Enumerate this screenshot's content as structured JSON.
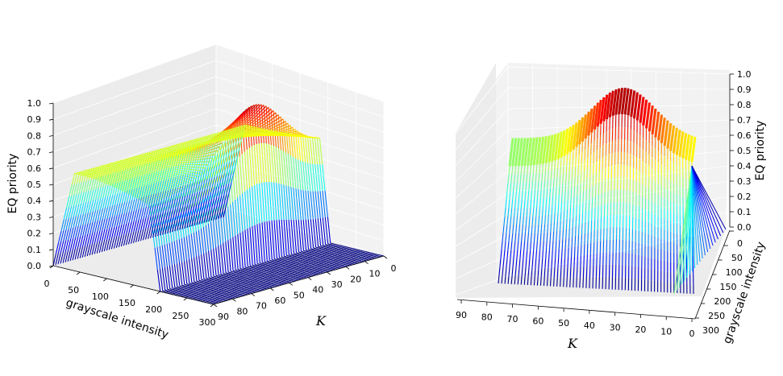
{
  "chart_data": [
    {
      "type": "surface",
      "view": "left",
      "xlabel": "grayscale intensity",
      "ylabel": "K",
      "zlabel": "EQ priority",
      "xlim": [
        0,
        300
      ],
      "ylim": [
        0,
        90
      ],
      "zlim": [
        0.0,
        1.0
      ],
      "x_ticks": [
        "0",
        "50",
        "100",
        "150",
        "200",
        "250",
        "300"
      ],
      "y_ticks": [
        "0",
        "10",
        "20",
        "30",
        "40",
        "50",
        "60",
        "70",
        "80",
        "90"
      ],
      "z_ticks": [
        "0.0",
        "0.1",
        "0.2",
        "0.3",
        "0.4",
        "0.5",
        "0.6",
        "0.7",
        "0.8",
        "0.9",
        "1.0"
      ],
      "colormap": "jet",
      "profile_x": [
        0,
        40,
        60,
        180,
        200,
        300
      ],
      "profile_z_low_k": [
        0.0,
        0.6,
        0.6,
        0.6,
        0.0,
        0.0
      ],
      "profile_z_peak": [
        0.0,
        0.6,
        0.6,
        0.98,
        0.0,
        0.0
      ],
      "k_peak": 35,
      "edge_z_k0": 0.6
    },
    {
      "type": "surface",
      "view": "right",
      "xlabel": "K",
      "ylabel": "grayscale intensity",
      "zlabel": "EQ priority",
      "xlim": [
        0,
        90
      ],
      "ylim": [
        0,
        300
      ],
      "zlim": [
        0.0,
        1.0
      ],
      "x_ticks": [
        "90",
        "80",
        "70",
        "60",
        "50",
        "40",
        "30",
        "20",
        "10",
        "0"
      ],
      "y_ticks": [
        "0",
        "50",
        "100",
        "150",
        "200",
        "250",
        "300"
      ],
      "z_ticks": [
        "0.0",
        "0.1",
        "0.2",
        "0.3",
        "0.4",
        "0.5",
        "0.6",
        "0.7",
        "0.8",
        "0.9",
        "1.0"
      ],
      "colormap": "jet"
    }
  ],
  "colors": {
    "pane": "#ececec",
    "grid": "#ffffff",
    "jet_low": "#00007f",
    "jet_mid": "#7fff7f",
    "jet_high": "#7f0000"
  }
}
